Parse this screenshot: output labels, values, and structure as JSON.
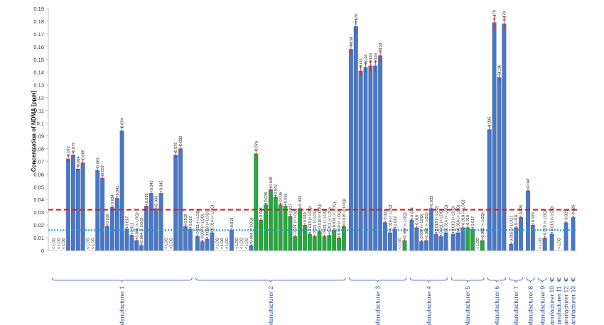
{
  "chart_data": {
    "type": "bar",
    "title": "",
    "ylabel": "Concentration of NDMA [ppm]",
    "ylim": [
      0,
      0.19
    ],
    "yticks": [
      "0",
      "0.01",
      "0.02",
      "0.03",
      "0.04",
      "0.05",
      "0.06",
      "0.07",
      "0.08",
      "0.09",
      "0.1",
      "0.11",
      "0.12",
      "0.13",
      "0.14",
      "0.15",
      "0.16",
      "0.17",
      "0.18",
      "0.19"
    ],
    "grid": false,
    "reference_lines": [
      {
        "value": 0.032,
        "color": "#e02020",
        "style": "dashed"
      },
      {
        "value": 0.016,
        "color": "#1aa7d9",
        "style": "dotted"
      }
    ],
    "colors": {
      "blue": "#4a78c4",
      "green": "#27a838",
      "error": "#c0282c"
    },
    "manufacturers": [
      {
        "name": "Manufacturer 1",
        "bars": [
          {
            "v": 0,
            "l": "< LOD",
            "c": "blue"
          },
          {
            "v": 0,
            "l": "< LOD",
            "c": "blue"
          },
          {
            "v": 0,
            "l": "< LOD",
            "c": "blue"
          },
          {
            "v": 0.072,
            "l": "0.072",
            "c": "blue"
          },
          {
            "v": 0.075,
            "l": "0.075",
            "c": "blue"
          },
          {
            "v": 0.064,
            "l": "0.064",
            "c": "blue"
          },
          {
            "v": 0.069,
            "l": "0.069",
            "c": "blue"
          },
          {
            "v": 0,
            "l": "< LOD",
            "c": "blue"
          },
          {
            "v": 0,
            "l": "< LOD",
            "c": "blue"
          },
          {
            "v": 0.063,
            "l": "0.063",
            "c": "blue"
          },
          {
            "v": 0.057,
            "l": "0.057",
            "c": "blue"
          },
          {
            "v": 0.019,
            "l": "0.019",
            "c": "blue"
          },
          {
            "v": 0.034,
            "l": "0.034",
            "c": "blue"
          },
          {
            "v": 0.041,
            "l": "0.041",
            "c": "blue"
          },
          {
            "v": 0.094,
            "l": "0.094",
            "c": "blue"
          },
          {
            "v": 0.017,
            "l": "0.017",
            "c": "blue"
          },
          {
            "v": 0.012,
            "l": "0.012",
            "c": "blue"
          },
          {
            "v": 0.008,
            "l": "0.008 (< LOQ)",
            "c": "blue"
          },
          {
            "v": 0.004,
            "l": "0.004 (< LOQ)",
            "c": "blue"
          },
          {
            "v": 0.035,
            "l": "0.035",
            "c": "blue"
          },
          {
            "v": 0.045,
            "l": "0.045",
            "c": "blue"
          },
          {
            "v": 0.033,
            "l": "0.033",
            "c": "blue"
          },
          {
            "v": 0.045,
            "l": "0.045",
            "c": "blue"
          },
          {
            "v": 0,
            "l": "< LOD",
            "c": "blue"
          },
          {
            "v": 0,
            "l": "< LOD",
            "c": "blue"
          },
          {
            "v": 0.075,
            "l": "0.075",
            "c": "blue"
          },
          {
            "v": 0.08,
            "l": "0.080",
            "c": "blue"
          },
          {
            "v": 0.019,
            "l": "0.019",
            "c": "blue"
          },
          {
            "v": 0.017,
            "l": "0.017",
            "c": "blue"
          }
        ]
      },
      {
        "name": "Manufacturer 2",
        "bars": [
          {
            "v": 0.011,
            "l": "0.011 (< LOQ)",
            "c": "blue"
          },
          {
            "v": 0.007,
            "l": "0.007 (< LOQ)",
            "c": "blue"
          },
          {
            "v": 0.009,
            "l": "0.009 (< LOQ)",
            "c": "blue"
          },
          {
            "v": 0.014,
            "l": "0.014 (< LOQ)",
            "c": "blue"
          },
          {
            "v": 0,
            "l": "< LOD",
            "c": "blue"
          },
          {
            "v": 0,
            "l": "< LOD",
            "c": "blue"
          },
          {
            "v": 0,
            "l": "< LOD",
            "c": "blue"
          },
          {
            "v": 0.016,
            "l": "0.016",
            "c": "blue"
          },
          {
            "v": 0,
            "l": "< LOD",
            "c": "blue"
          },
          {
            "v": 0,
            "l": "< LOD",
            "c": "blue"
          },
          {
            "v": 0,
            "l": "< LOD",
            "c": "blue"
          },
          {
            "v": 0.004,
            "l": "0.004 (< LOQ)",
            "c": "blue"
          },
          {
            "v": 0.076,
            "l": "0.076",
            "c": "green"
          },
          {
            "v": 0.024,
            "l": "0.024",
            "c": "green"
          },
          {
            "v": 0.036,
            "l": "0.036",
            "c": "green"
          },
          {
            "v": 0.048,
            "l": "0.048",
            "c": "green"
          },
          {
            "v": 0.042,
            "l": "0.042",
            "c": "green"
          },
          {
            "v": 0.036,
            "l": "0.036",
            "c": "green"
          },
          {
            "v": 0.035,
            "l": "0.035",
            "c": "green"
          },
          {
            "v": 0.027,
            "l": "0.027",
            "c": "green"
          },
          {
            "v": 0.011,
            "l": "0.011 (< LOQ)",
            "c": "green"
          },
          {
            "v": 0.033,
            "l": "0.033",
            "c": "green"
          },
          {
            "v": 0.02,
            "l": "0.020",
            "c": "green"
          },
          {
            "v": 0.013,
            "l": "0.013 (< LOQ)",
            "c": "green"
          },
          {
            "v": 0.011,
            "l": "0.011 (< LOQ)",
            "c": "green"
          },
          {
            "v": 0.015,
            "l": "0.015 (< LOQ)",
            "c": "green"
          },
          {
            "v": 0.011,
            "l": "0.011 (< LOQ)",
            "c": "green"
          },
          {
            "v": 0.012,
            "l": "0.012 (< LOQ)",
            "c": "green"
          },
          {
            "v": 0.016,
            "l": "0.016 (< LOQ)",
            "c": "green"
          },
          {
            "v": 0.01,
            "l": "0.010 (< LOQ)",
            "c": "green"
          },
          {
            "v": 0.019,
            "l": "0.019 (< LOQ)",
            "c": "green"
          }
        ]
      },
      {
        "name": "Manufacturer 3",
        "bars": [
          {
            "v": 0.158,
            "l": "0.158",
            "c": "blue"
          },
          {
            "v": 0.176,
            "l": "0.176",
            "c": "blue"
          },
          {
            "v": 0.141,
            "l": "0.141",
            "c": "blue"
          },
          {
            "v": 0.144,
            "l": "0.144",
            "c": "blue"
          },
          {
            "v": 0.145,
            "l": "0.145",
            "c": "blue"
          },
          {
            "v": 0.145,
            "l": "0.145",
            "c": "blue"
          },
          {
            "v": 0.153,
            "l": "0.153",
            "c": "blue"
          },
          {
            "v": 0.022,
            "l": "0.022",
            "c": "blue"
          },
          {
            "v": 0.014,
            "l": "0.014 (< LOQ)",
            "c": "blue"
          },
          {
            "v": 0.017,
            "l": "0.017",
            "c": "blue"
          },
          {
            "v": 0,
            "l": "< LOD",
            "c": "blue"
          },
          {
            "v": 0.008,
            "l": "0.008 (< LOQ)",
            "c": "green"
          }
        ]
      },
      {
        "name": "Manufacturer 4",
        "bars": [
          {
            "v": 0.024,
            "l": "0.024",
            "c": "blue"
          },
          {
            "v": 0.018,
            "l": "0.018",
            "c": "blue"
          },
          {
            "v": 0.007,
            "l": "0.007 (< LOQ)",
            "c": "blue"
          },
          {
            "v": 0.008,
            "l": "0.008 (< LOQ)",
            "c": "blue"
          },
          {
            "v": 0.033,
            "l": "0.033",
            "c": "blue"
          },
          {
            "v": 0.013,
            "l": "0.013 (< LOQ)",
            "c": "blue"
          },
          {
            "v": 0.011,
            "l": "0.011 (< LOQ)",
            "c": "blue"
          },
          {
            "v": 0.014,
            "l": "0.014 (< LOQ)",
            "c": "blue"
          }
        ]
      },
      {
        "name": "Manufacturer 5",
        "bars": [
          {
            "v": 0.013,
            "l": "0.013 (< LOQ)",
            "c": "blue"
          },
          {
            "v": 0.014,
            "l": "0.014 (< LOQ)",
            "c": "blue"
          },
          {
            "v": 0.018,
            "l": "0.018 (< LOQ)",
            "c": "blue"
          },
          {
            "v": 0.018,
            "l": "0.018",
            "c": "green"
          },
          {
            "v": 0.017,
            "l": "0.017",
            "c": "green"
          },
          {
            "v": 0,
            "l": "< LOD",
            "c": "green"
          },
          {
            "v": 0.008,
            "l": "0.008 (< LOQ)",
            "c": "green"
          }
        ]
      },
      {
        "name": "Manufacturer 6",
        "bars": [
          {
            "v": 0.095,
            "l": "0.095",
            "c": "blue"
          },
          {
            "v": 0.179,
            "l": "0.179",
            "c": "blue"
          },
          {
            "v": 0.136,
            "l": "0.136",
            "c": "blue"
          },
          {
            "v": 0.178,
            "l": "0.178",
            "c": "blue"
          }
        ]
      },
      {
        "name": "Manufacturer 7",
        "bars": [
          {
            "v": 0.005,
            "l": "0.005 (< LOQ)",
            "c": "blue"
          },
          {
            "v": 0.018,
            "l": "0.018",
            "c": "blue"
          },
          {
            "v": 0.026,
            "l": "0.026",
            "c": "blue"
          }
        ]
      },
      {
        "name": "Manufacturer 8",
        "bars": [
          {
            "v": 0.047,
            "l": "0.047",
            "c": "blue"
          },
          {
            "v": 0.02,
            "l": "0.020",
            "c": "blue"
          }
        ]
      },
      {
        "name": "Manufacturer 9",
        "bars": [
          {
            "v": 0,
            "l": "< LOD",
            "c": "blue"
          },
          {
            "v": 0.01,
            "l": "0.010 (< LOQ)",
            "c": "blue"
          }
        ]
      },
      {
        "name": "Manufacturer 10",
        "bars": [
          {
            "v": 0.013,
            "l": "0.013 (< LOQ)",
            "c": "blue"
          }
        ]
      },
      {
        "name": "Manufacturer 11",
        "bars": [
          {
            "v": 0,
            "l": "< LOD",
            "c": "blue"
          }
        ]
      },
      {
        "name": "Manufacturer 12",
        "bars": [
          {
            "v": 0.022,
            "l": "0.022",
            "c": "blue"
          }
        ]
      },
      {
        "name": "Manufacturer 13",
        "bars": [
          {
            "v": 0.026,
            "l": "0.026",
            "c": "blue"
          }
        ]
      }
    ]
  }
}
